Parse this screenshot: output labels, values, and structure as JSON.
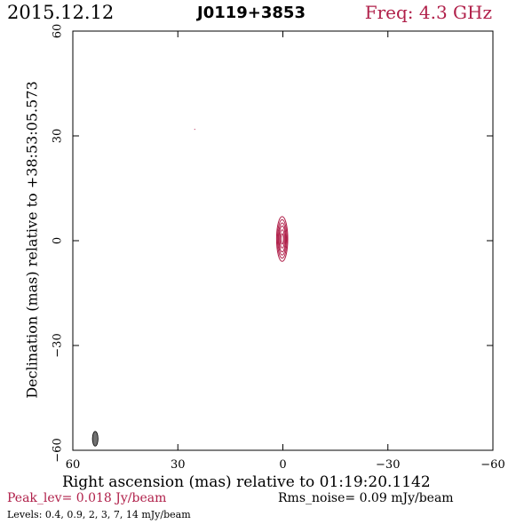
{
  "header": {
    "date": "2015.12.12",
    "source": "J0119+3853",
    "freq": "Freq: 4.3 GHz"
  },
  "footer": {
    "peak": "Peak_lev=  0.018 Jy/beam",
    "rms": "Rms_noise= 0.09 mJy/beam",
    "levels": "Levels: 0.4,  0.9,    2,    3,    7,   14  mJy/beam"
  },
  "colors": {
    "contour": "#b0204a",
    "beam": "#707070",
    "axis": "#000000"
  },
  "chart_data": {
    "type": "contour",
    "xlabel": "Right ascension (mas) relative to 01:19:20.1142",
    "ylabel": "Declination (mas) relative to +38:53:05.573",
    "xlim": [
      60,
      -60
    ],
    "ylim": [
      -60,
      60
    ],
    "xticks": [
      60,
      30,
      0,
      -30,
      -60
    ],
    "yticks": [
      -60,
      -30,
      0,
      30,
      60
    ],
    "x_tick_labels": [
      "60",
      "30",
      "0",
      "−30",
      "−60"
    ],
    "y_tick_labels": [
      "−60",
      "−30",
      "0",
      "30",
      "60"
    ],
    "levels_mJy_per_beam": [
      0.4,
      0.9,
      2,
      3,
      7,
      14
    ],
    "peak_Jy_per_beam": 0.018,
    "rms_noise_mJy_per_beam": 0.09,
    "source_center": [
      0.2,
      0.5
    ],
    "contours": [
      {
        "level": 0.4,
        "x": 0.2,
        "y": 0.5,
        "semi_x": 1.6,
        "semi_y": 6.4
      },
      {
        "level": 0.9,
        "x": 0.2,
        "y": 0.5,
        "semi_x": 1.35,
        "semi_y": 5.5
      },
      {
        "level": 2,
        "x": 0.2,
        "y": 0.5,
        "semi_x": 1.1,
        "semi_y": 4.6
      },
      {
        "level": 3,
        "x": 0.2,
        "y": 0.5,
        "semi_x": 0.9,
        "semi_y": 3.7
      },
      {
        "level": 7,
        "x": 0.2,
        "y": 0.5,
        "semi_x": 0.65,
        "semi_y": 2.6
      },
      {
        "level": 14,
        "x": 0.2,
        "y": 0.5,
        "semi_x": 0.35,
        "semi_y": 1.5
      }
    ],
    "beam": {
      "x": 53.6,
      "y": -56.7,
      "semi_x": 0.8,
      "semi_y": 2.1
    },
    "specks": [
      [
        25.3,
        32.0
      ]
    ]
  }
}
